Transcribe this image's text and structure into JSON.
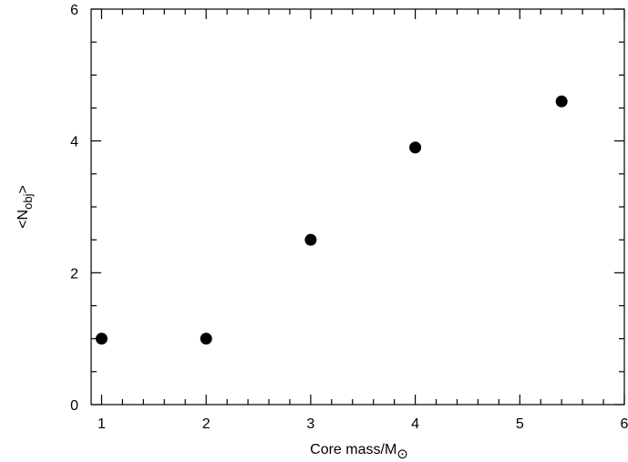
{
  "chart_data": {
    "type": "scatter",
    "title": "",
    "xlabel": "Core mass/M⊙",
    "ylabel": "<Nobj>",
    "xlim": [
      0.9,
      6
    ],
    "ylim": [
      0,
      6
    ],
    "x_ticks": [
      "1",
      "2",
      "3",
      "4",
      "5",
      "6"
    ],
    "y_ticks": [
      "0",
      "2",
      "4",
      "6"
    ],
    "grid": false,
    "marker_color": "#000000",
    "points": [
      {
        "x": 1.0,
        "y": 1.0
      },
      {
        "x": 2.0,
        "y": 1.0
      },
      {
        "x": 3.0,
        "y": 2.5
      },
      {
        "x": 4.0,
        "y": 3.9
      },
      {
        "x": 5.4,
        "y": 4.6
      }
    ]
  }
}
